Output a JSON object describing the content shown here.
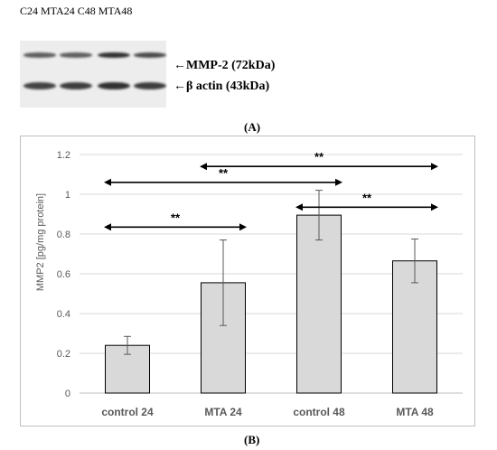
{
  "blot": {
    "header": "C24 MTA24 C48 MTA48",
    "rows": [
      {
        "label": "←MMP-2 (72kDa)",
        "intensities": [
          0.55,
          0.55,
          0.9,
          0.7
        ]
      },
      {
        "label": "←β actin (43kDa)",
        "intensities": [
          0.75,
          0.8,
          0.9,
          0.8
        ]
      }
    ],
    "panel_label": "(A)"
  },
  "chart_panel_label": "(B)",
  "chart_data": {
    "type": "bar",
    "categories": [
      "control 24",
      "MTA 24",
      "control 48",
      "MTA 48"
    ],
    "values": [
      0.24,
      0.555,
      0.895,
      0.665
    ],
    "errors": [
      0.045,
      0.215,
      0.125,
      0.11
    ],
    "ylabel": "MMP2 [pg/mg protein]",
    "ylim": [
      0,
      1.2
    ],
    "yticks": [
      0,
      0.2,
      0.4,
      0.6,
      0.8,
      1,
      1.2
    ],
    "ytick_labels": [
      "0",
      "0.2",
      "0.4",
      "0.6",
      "0.8",
      "1",
      "1.2"
    ],
    "grid": true,
    "bar_color": "#d9d9d9",
    "significance": [
      {
        "from": 0,
        "to": 1,
        "y": 0.835,
        "label": "**"
      },
      {
        "from": 0,
        "to": 2,
        "y": 1.06,
        "label": "**"
      },
      {
        "from": 1,
        "to": 3,
        "y": 1.14,
        "label": "**"
      },
      {
        "from": 2,
        "to": 3,
        "y": 0.935,
        "label": "**"
      }
    ]
  }
}
